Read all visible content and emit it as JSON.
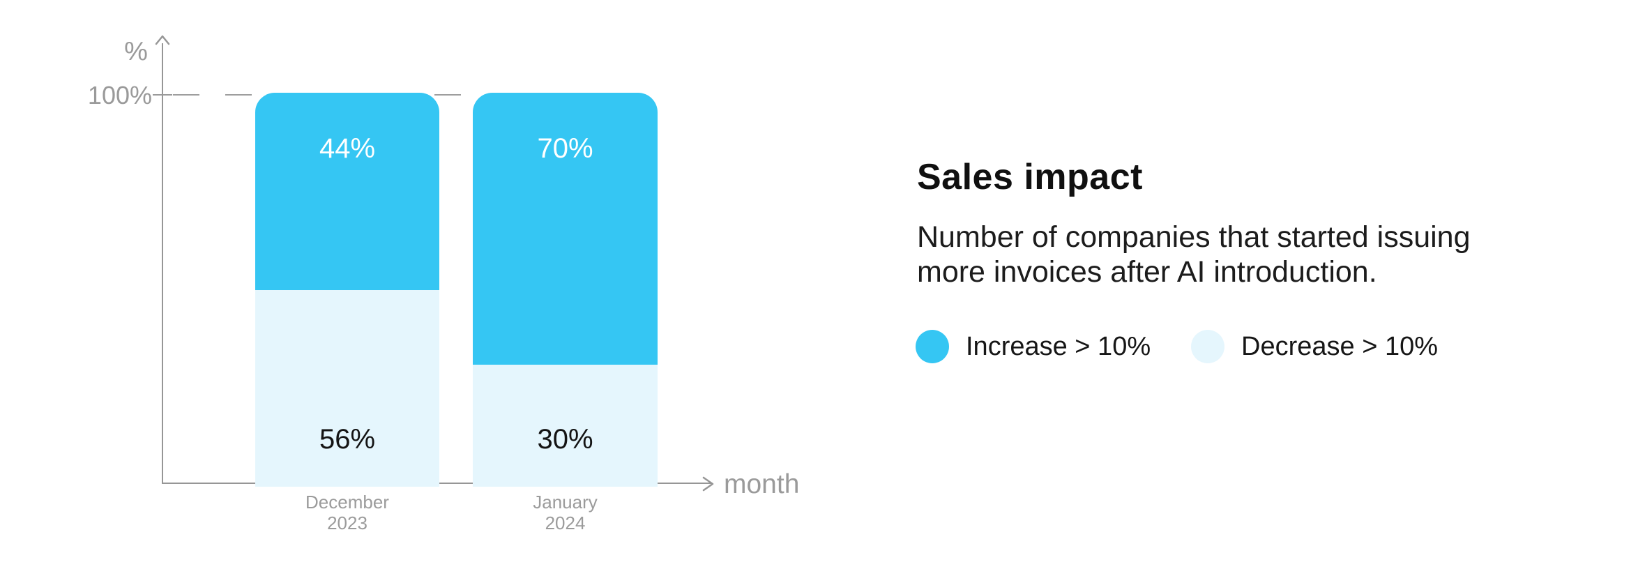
{
  "colors": {
    "increase": "#35c6f3",
    "decrease": "#e5f6fd",
    "axis_line": "#969696",
    "axis_text": "#9a9a9a",
    "title_text": "#101010",
    "white_label": "#ffffff",
    "dark_label": "#141414"
  },
  "chart": {
    "y_unit_label": "%",
    "y_tick_label": "100%",
    "x_axis_label": "month"
  },
  "chart_data": {
    "type": "bar",
    "stacked": true,
    "title": "Sales impact",
    "subtitle": "Number of companies that started issuing more invoices after AI introduction.",
    "xlabel": "month",
    "ylabel": "%",
    "ylim": [
      0,
      100
    ],
    "y_tick_labels": [
      "100%"
    ],
    "gridline_at": 100,
    "gridline_style": "dashed",
    "legend_position": "right-panel",
    "categories": [
      "December 2023",
      "January 2024"
    ],
    "series": [
      {
        "name": "Increase > 10%",
        "values": [
          44,
          70
        ],
        "color": "#35c6f3",
        "label_position": "top"
      },
      {
        "name": "Decrease > 10%",
        "values": [
          56,
          30
        ],
        "color": "#e5f6fd",
        "label_position": "bottom"
      }
    ],
    "visual_segment_heights_pct": [
      {
        "category": "December 2023",
        "increase": 50,
        "decrease": 50
      },
      {
        "category": "January 2024",
        "increase": 69,
        "decrease": 31
      }
    ]
  },
  "bars": [
    {
      "category_line1": "December",
      "category_line2": "2023",
      "top_label": "44%",
      "bottom_label": "56%",
      "top_value": 44,
      "bottom_value": 56,
      "visual_top_pct": 50
    },
    {
      "category_line1": "January",
      "category_line2": "2024",
      "top_label": "70%",
      "bottom_label": "30%",
      "top_value": 70,
      "bottom_value": 30,
      "visual_top_pct": 69
    }
  ],
  "panel": {
    "title": "Sales impact",
    "subtitle_line1": "Number of companies that started issuing",
    "subtitle_line2": "more invoices after AI introduction.",
    "legend": [
      {
        "label": "Increase > 10%",
        "color": "#35c6f3"
      },
      {
        "label": "Decrease > 10%",
        "color": "#e5f6fd"
      }
    ]
  }
}
